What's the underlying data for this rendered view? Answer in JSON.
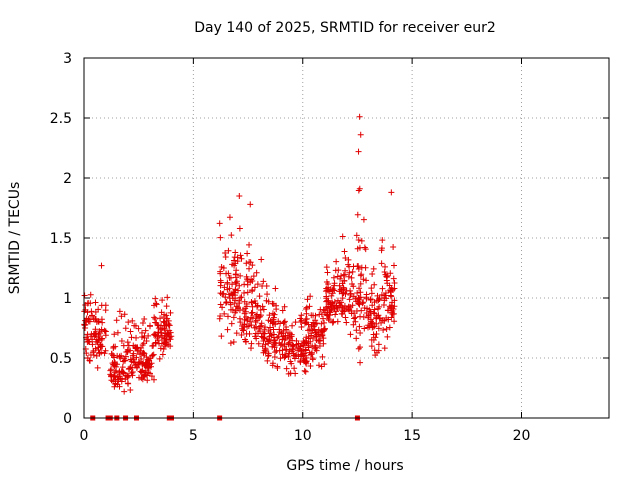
{
  "chart_data": {
    "type": "scatter",
    "title": "Day 140 of 2025, SRMTID for receiver eur2",
    "xlabel": "GPS time / hours",
    "ylabel": "SRMTID / TECUs",
    "xlim": [
      0,
      24
    ],
    "ylim": [
      0,
      3
    ],
    "x_ticks": [
      0,
      5,
      10,
      15,
      20
    ],
    "x_tick_labels": [
      "0",
      "5",
      "10",
      "15",
      "20"
    ],
    "y_ticks": [
      0,
      0.5,
      1,
      1.5,
      2,
      2.5,
      3
    ],
    "y_tick_labels": [
      "0",
      "0.5",
      "1",
      "1.5",
      "2",
      "2.5",
      "3"
    ],
    "grid": true,
    "marker": "plus",
    "color": "#e00000",
    "segments": [
      {
        "x_start": 0.0,
        "x_end": 1.0,
        "y_min": 0.35,
        "y_max": 1.1,
        "y_mid": 0.68
      },
      {
        "x_start": 1.2,
        "x_end": 2.2,
        "y_min": 0.15,
        "y_max": 1.0,
        "y_mid": 0.42
      },
      {
        "x_start": 2.2,
        "x_end": 3.2,
        "y_min": 0.25,
        "y_max": 0.95,
        "y_mid": 0.5
      },
      {
        "x_start": 3.2,
        "x_end": 4.0,
        "y_min": 0.45,
        "y_max": 1.12,
        "y_mid": 0.72
      },
      {
        "x_start": 6.2,
        "x_end": 7.2,
        "y_min": 0.5,
        "y_max": 1.8,
        "y_mid": 1.05
      },
      {
        "x_start": 7.2,
        "x_end": 8.2,
        "y_min": 0.5,
        "y_max": 1.6,
        "y_mid": 0.85
      },
      {
        "x_start": 8.2,
        "x_end": 9.2,
        "y_min": 0.3,
        "y_max": 1.2,
        "y_mid": 0.68
      },
      {
        "x_start": 9.2,
        "x_end": 10.2,
        "y_min": 0.3,
        "y_max": 1.0,
        "y_mid": 0.6
      },
      {
        "x_start": 10.2,
        "x_end": 11.0,
        "y_min": 0.35,
        "y_max": 1.1,
        "y_mid": 0.7
      },
      {
        "x_start": 11.0,
        "x_end": 11.8,
        "y_min": 0.7,
        "y_max": 1.4,
        "y_mid": 1.0
      },
      {
        "x_start": 11.8,
        "x_end": 12.3,
        "y_min": 0.55,
        "y_max": 1.6,
        "y_mid": 1.05
      },
      {
        "x_start": 12.3,
        "x_end": 12.9,
        "y_min": 0.3,
        "y_max": 2.2,
        "y_mid": 1.05
      },
      {
        "x_start": 12.9,
        "x_end": 13.5,
        "y_min": 0.3,
        "y_max": 1.35,
        "y_mid": 0.8
      },
      {
        "x_start": 13.5,
        "x_end": 14.2,
        "y_min": 0.55,
        "y_max": 1.65,
        "y_mid": 0.95
      }
    ],
    "outliers": [
      {
        "x": 0.8,
        "y": 1.27
      },
      {
        "x": 7.1,
        "y": 1.85
      },
      {
        "x": 7.6,
        "y": 1.78
      },
      {
        "x": 12.6,
        "y": 2.51
      },
      {
        "x": 12.65,
        "y": 2.36
      },
      {
        "x": 12.55,
        "y": 2.22
      },
      {
        "x": 14.05,
        "y": 1.88
      }
    ],
    "zero_markers": [
      0.4,
      1.1,
      1.2,
      1.5,
      1.9,
      2.4,
      3.9,
      4.0,
      6.2,
      12.5
    ]
  }
}
